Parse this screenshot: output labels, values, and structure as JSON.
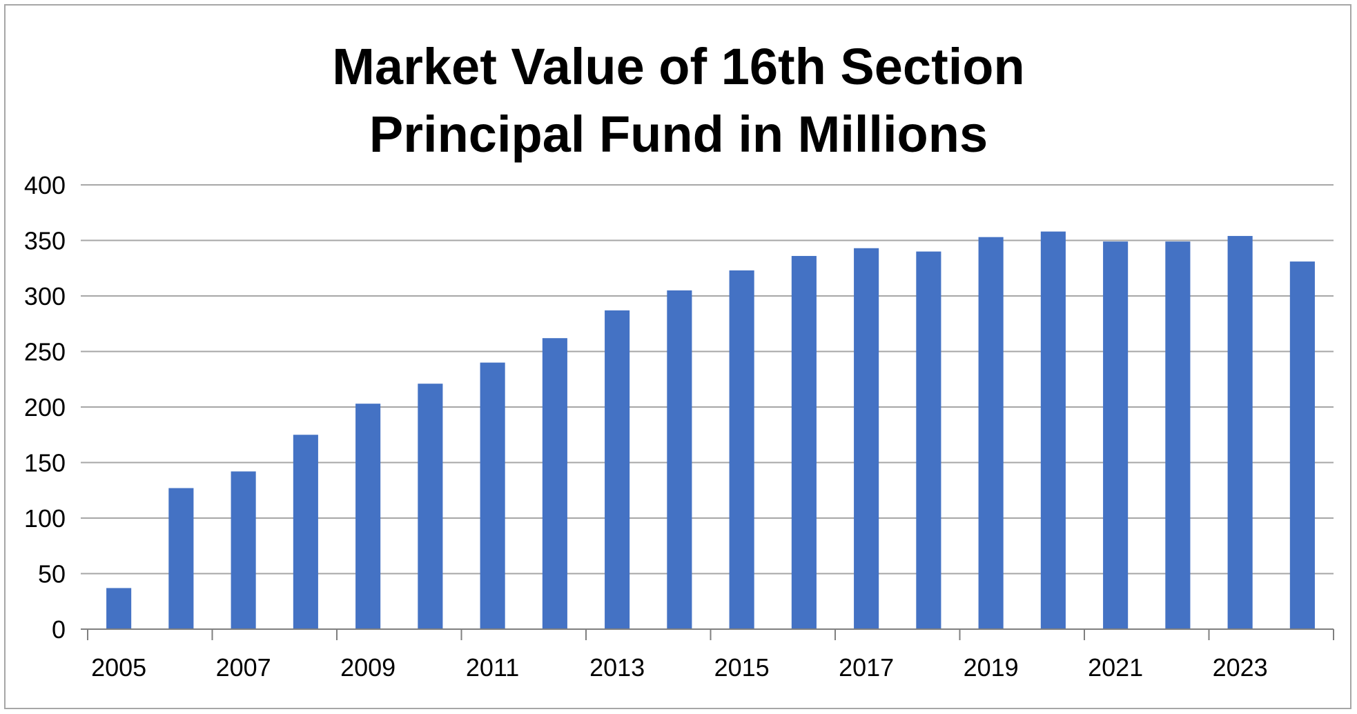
{
  "chart_data": {
    "type": "bar",
    "title_lines": [
      "Market Value of 16th Section",
      "Principal Fund in Millions"
    ],
    "xlabel": "",
    "ylabel": "",
    "ylim": [
      0,
      400
    ],
    "yticks": [
      "0",
      "50",
      "100",
      "150",
      "200",
      "250",
      "300",
      "350",
      "400"
    ],
    "categories": [
      "2005",
      "2006",
      "2007",
      "2008",
      "2009",
      "2010",
      "2011",
      "2012",
      "2013",
      "2014",
      "2015",
      "2016",
      "2017",
      "2018",
      "2019",
      "2020",
      "2021",
      "2022",
      "2023",
      "2024"
    ],
    "category_labels_shown": [
      "2005",
      "2007",
      "2009",
      "2011",
      "2013",
      "2015",
      "2017",
      "2019",
      "2021",
      "2023"
    ],
    "values": [
      37,
      127,
      142,
      175,
      203,
      221,
      240,
      262,
      287,
      305,
      323,
      336,
      343,
      340,
      353,
      358,
      349,
      349,
      354,
      331
    ],
    "grid": true,
    "legend": "none",
    "colors": {
      "bar": "#4472c4",
      "grid": "#a6a6a6",
      "axis": "#7f7f7f",
      "frame": "#a6a6a6"
    }
  }
}
